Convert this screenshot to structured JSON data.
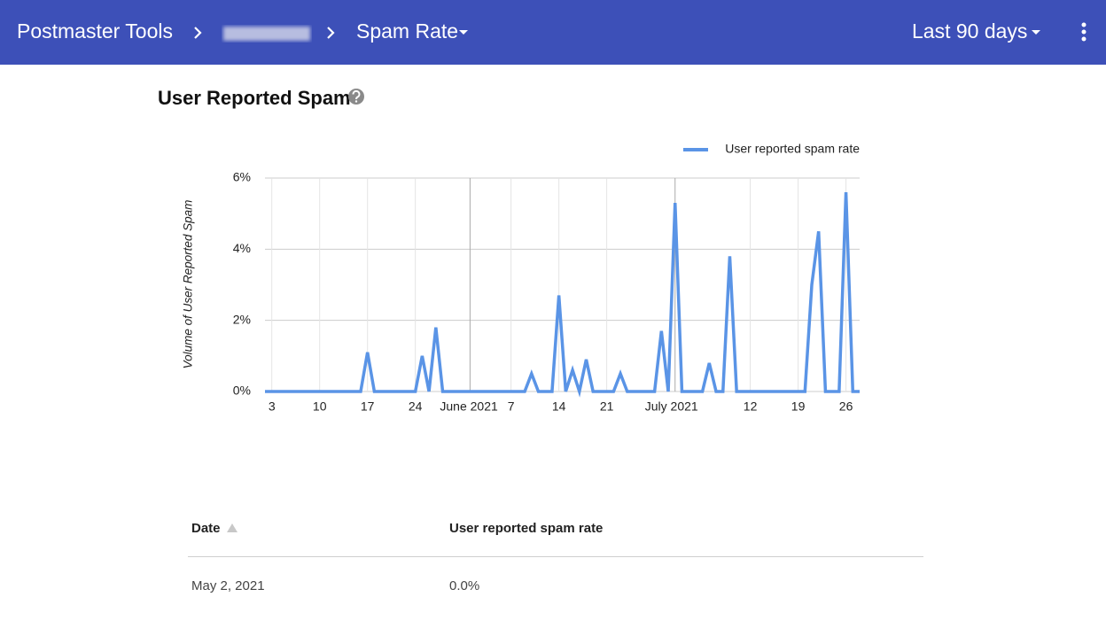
{
  "header": {
    "app": "Postmaster Tools",
    "page": "Spam Rate",
    "range": "Last 90 days"
  },
  "chart_data": {
    "type": "line",
    "title": "User Reported Spam",
    "y_label": "Volume of User Reported Spam",
    "legend": "top-right",
    "grid": true,
    "xlim": [
      "2021-05-02",
      "2021-07-28"
    ],
    "xticks": [
      {
        "value": "2021-05-03",
        "label": "3"
      },
      {
        "value": "2021-05-10",
        "label": "10"
      },
      {
        "value": "2021-05-17",
        "label": "17"
      },
      {
        "value": "2021-05-24",
        "label": "24"
      },
      {
        "value": "2021-06-01",
        "label": "June 2021"
      },
      {
        "value": "2021-06-07",
        "label": "7"
      },
      {
        "value": "2021-06-14",
        "label": "14"
      },
      {
        "value": "2021-06-21",
        "label": "21"
      },
      {
        "value": "2021-07-01",
        "label": "July 2021"
      },
      {
        "value": "2021-07-12",
        "label": "12"
      },
      {
        "value": "2021-07-19",
        "label": "19"
      },
      {
        "value": "2021-07-26",
        "label": "26"
      }
    ],
    "ylim": [
      0,
      6
    ],
    "yticks": [
      {
        "value": 0,
        "label": "0%"
      },
      {
        "value": 2,
        "label": "2%"
      },
      {
        "value": 4,
        "label": "4%"
      },
      {
        "value": 6,
        "label": "6%"
      }
    ],
    "x": [
      "2021-05-02",
      "2021-05-03",
      "2021-05-04",
      "2021-05-05",
      "2021-05-06",
      "2021-05-07",
      "2021-05-08",
      "2021-05-09",
      "2021-05-10",
      "2021-05-11",
      "2021-05-12",
      "2021-05-13",
      "2021-05-14",
      "2021-05-15",
      "2021-05-16",
      "2021-05-17",
      "2021-05-18",
      "2021-05-19",
      "2021-05-20",
      "2021-05-21",
      "2021-05-22",
      "2021-05-23",
      "2021-05-24",
      "2021-05-25",
      "2021-05-26",
      "2021-05-27",
      "2021-05-28",
      "2021-05-29",
      "2021-05-30",
      "2021-05-31",
      "2021-06-01",
      "2021-06-02",
      "2021-06-03",
      "2021-06-04",
      "2021-06-05",
      "2021-06-06",
      "2021-06-07",
      "2021-06-08",
      "2021-06-09",
      "2021-06-10",
      "2021-06-11",
      "2021-06-12",
      "2021-06-13",
      "2021-06-14",
      "2021-06-15",
      "2021-06-16",
      "2021-06-17",
      "2021-06-18",
      "2021-06-19",
      "2021-06-20",
      "2021-06-21",
      "2021-06-22",
      "2021-06-23",
      "2021-06-24",
      "2021-06-25",
      "2021-06-26",
      "2021-06-27",
      "2021-06-28",
      "2021-06-29",
      "2021-06-30",
      "2021-07-01",
      "2021-07-02",
      "2021-07-03",
      "2021-07-04",
      "2021-07-05",
      "2021-07-06",
      "2021-07-07",
      "2021-07-08",
      "2021-07-09",
      "2021-07-10",
      "2021-07-11",
      "2021-07-12",
      "2021-07-13",
      "2021-07-14",
      "2021-07-15",
      "2021-07-16",
      "2021-07-17",
      "2021-07-18",
      "2021-07-19",
      "2021-07-20",
      "2021-07-21",
      "2021-07-22",
      "2021-07-23",
      "2021-07-24",
      "2021-07-25",
      "2021-07-26",
      "2021-07-27",
      "2021-07-28"
    ],
    "series": [
      {
        "name": "User reported spam rate",
        "color": "#5a94e6",
        "values": [
          0,
          0,
          0,
          0,
          0,
          0,
          0,
          0,
          0,
          0,
          0,
          0,
          0,
          0,
          0,
          1.1,
          0,
          0,
          0,
          0,
          0,
          0,
          0,
          1.0,
          0,
          1.8,
          0,
          0,
          0,
          0,
          0,
          0,
          0,
          0,
          0,
          0,
          0,
          0,
          0,
          0.5,
          0,
          0,
          0,
          2.7,
          0,
          0.6,
          0,
          0.9,
          0,
          0,
          0,
          0,
          0.5,
          0,
          0,
          0,
          0,
          0,
          1.7,
          0,
          5.3,
          0,
          0,
          0,
          0,
          0.8,
          0,
          0,
          3.8,
          0,
          0,
          0,
          0,
          0,
          0,
          0,
          0,
          0,
          0,
          0,
          3.0,
          4.5,
          0,
          0,
          0,
          5.6,
          0,
          0
        ]
      }
    ]
  },
  "table": {
    "columns": [
      "Date",
      "User reported spam rate"
    ],
    "rows": [
      [
        "May 2, 2021",
        "0.0%"
      ]
    ]
  }
}
